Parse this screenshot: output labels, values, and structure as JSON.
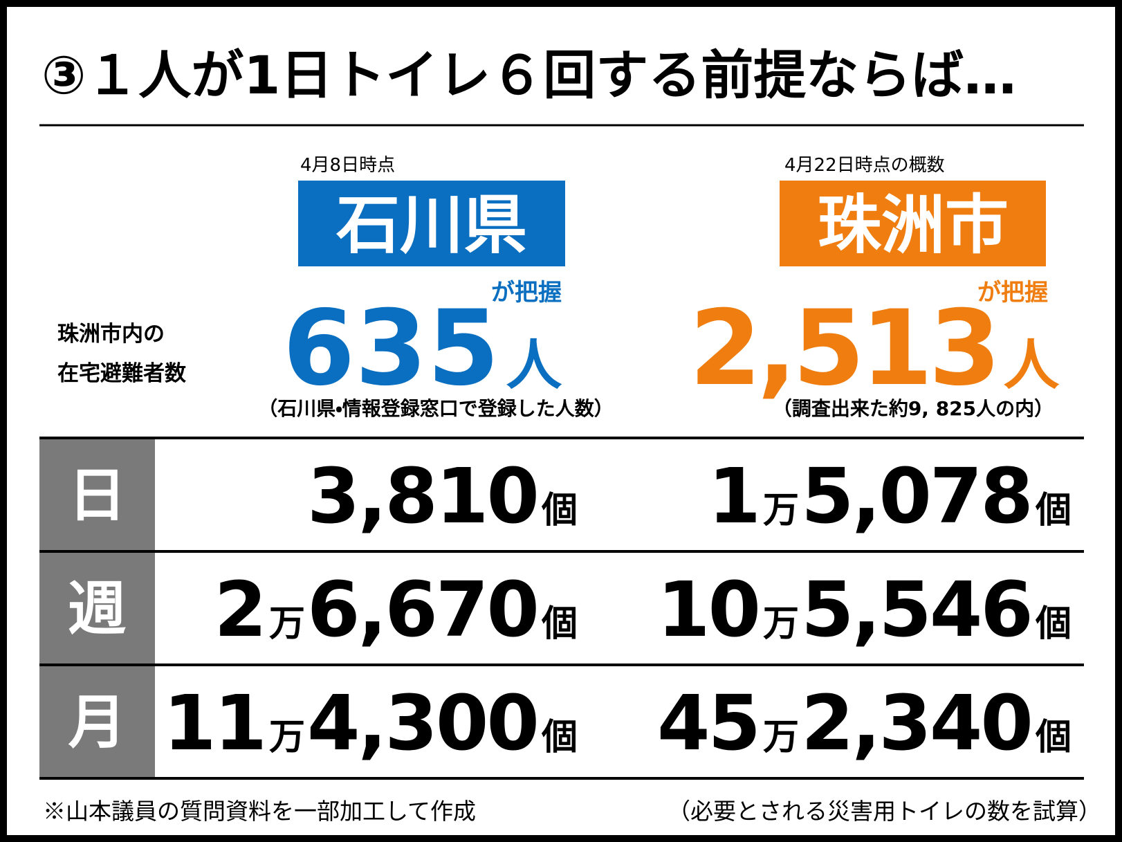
{
  "title": "③１人が1日トイレ６回する前提ならば…",
  "row_label": [
    "珠洲市内の",
    "在宅避難者数"
  ],
  "columns": [
    {
      "date": "4月8日時点",
      "name": "石川県",
      "grasp": "が把握",
      "count": "635",
      "unit": "人",
      "note": "（石川県・情報登録窓口で登録した人数）"
    },
    {
      "date": "4月22日時点の概数",
      "name": "珠洲市",
      "grasp": "が把握",
      "count": "2,513",
      "unit": "人",
      "note": "（調査出来た約9, 825人の内）"
    }
  ],
  "table": {
    "rows": [
      {
        "label": "日",
        "cells": [
          [
            "3,810",
            "個"
          ],
          [
            "1",
            "万",
            "5,078",
            "個"
          ]
        ]
      },
      {
        "label": "週",
        "cells": [
          [
            "2",
            "万",
            "6,670",
            "個"
          ],
          [
            "10",
            "万",
            "5,546",
            "個"
          ]
        ]
      },
      {
        "label": "月",
        "cells": [
          [
            "11",
            "万",
            "4,300",
            "個"
          ],
          [
            "45",
            "万",
            "2,340",
            "個"
          ]
        ]
      }
    ]
  },
  "footer": {
    "left": "※山本議員の質問資料を一部加工して作成",
    "right": "（必要とされる災害用トイレの数を試算）"
  }
}
